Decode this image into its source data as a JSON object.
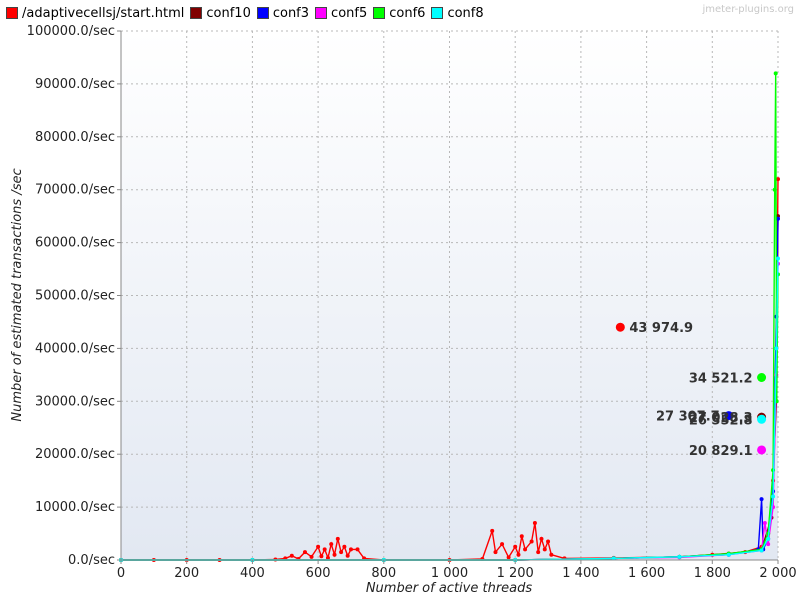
{
  "watermark": "jmeter-plugins.org",
  "chart_data": {
    "type": "line",
    "xlabel": "Number of active threads",
    "ylabel": "Number of estimated transactions /sec",
    "xlim": [
      0,
      2000
    ],
    "ylim": [
      0,
      100000
    ],
    "x_ticks": [
      0,
      200,
      400,
      600,
      800,
      1000,
      1200,
      1400,
      1600,
      1800,
      2000
    ],
    "x_tick_labels": [
      "0",
      "200",
      "400",
      "600",
      "800",
      "1 000",
      "1 200",
      "1 400",
      "1 600",
      "1 800",
      "2 000"
    ],
    "y_ticks": [
      0,
      10000,
      20000,
      30000,
      40000,
      50000,
      60000,
      70000,
      80000,
      90000,
      100000
    ],
    "y_tick_labels": [
      "0.0/sec",
      "10000.0/sec",
      "20000.0/sec",
      "30000.0/sec",
      "40000.0/sec",
      "50000.0/sec",
      "60000.0/sec",
      "70000.0/sec",
      "80000.0/sec",
      "90000.0/sec",
      "100000.0/sec"
    ],
    "grid": true,
    "legend_position": "top-left",
    "series": [
      {
        "name": "/adaptivecellsj/start.html",
        "color": "#ff0000",
        "points": [
          [
            0,
            0
          ],
          [
            100,
            0
          ],
          [
            200,
            0
          ],
          [
            300,
            0
          ],
          [
            400,
            0
          ],
          [
            470,
            100
          ],
          [
            500,
            300
          ],
          [
            520,
            800
          ],
          [
            540,
            200
          ],
          [
            560,
            1500
          ],
          [
            580,
            600
          ],
          [
            600,
            2500
          ],
          [
            610,
            700
          ],
          [
            620,
            2000
          ],
          [
            630,
            400
          ],
          [
            640,
            3000
          ],
          [
            650,
            1000
          ],
          [
            660,
            4000
          ],
          [
            670,
            1500
          ],
          [
            680,
            2500
          ],
          [
            690,
            800
          ],
          [
            700,
            2000
          ],
          [
            720,
            2000
          ],
          [
            740,
            300
          ],
          [
            800,
            0
          ],
          [
            1000,
            0
          ],
          [
            1100,
            200
          ],
          [
            1130,
            5500
          ],
          [
            1140,
            1500
          ],
          [
            1160,
            3000
          ],
          [
            1180,
            500
          ],
          [
            1200,
            2500
          ],
          [
            1210,
            1000
          ],
          [
            1220,
            4500
          ],
          [
            1230,
            2000
          ],
          [
            1250,
            3500
          ],
          [
            1260,
            7000
          ],
          [
            1270,
            1500
          ],
          [
            1280,
            4000
          ],
          [
            1290,
            2000
          ],
          [
            1300,
            3500
          ],
          [
            1310,
            1000
          ],
          [
            1350,
            300
          ],
          [
            1500,
            400
          ],
          [
            1700,
            600
          ],
          [
            1800,
            1000
          ],
          [
            1900,
            1500
          ],
          [
            1950,
            2500
          ],
          [
            1970,
            5000
          ],
          [
            1985,
            15000
          ],
          [
            1995,
            40000
          ],
          [
            2000,
            72000
          ]
        ]
      },
      {
        "name": "conf10",
        "color": "#800000",
        "points": [
          [
            0,
            0
          ],
          [
            400,
            0
          ],
          [
            800,
            0
          ],
          [
            1200,
            0
          ],
          [
            1500,
            300
          ],
          [
            1700,
            600
          ],
          [
            1850,
            1200
          ],
          [
            1950,
            2000
          ],
          [
            1980,
            8000
          ],
          [
            1995,
            30000
          ],
          [
            2000,
            65000
          ]
        ]
      },
      {
        "name": "conf3",
        "color": "#0000ff",
        "points": [
          [
            0,
            0
          ],
          [
            400,
            0
          ],
          [
            800,
            0
          ],
          [
            1200,
            0
          ],
          [
            1500,
            300
          ],
          [
            1700,
            600
          ],
          [
            1850,
            1000
          ],
          [
            1940,
            2000
          ],
          [
            1950,
            11500
          ],
          [
            1955,
            2000
          ],
          [
            1970,
            4000
          ],
          [
            1985,
            13000
          ],
          [
            1995,
            46000
          ],
          [
            2000,
            64500
          ]
        ]
      },
      {
        "name": "conf5",
        "color": "#ff00ff",
        "points": [
          [
            0,
            0
          ],
          [
            400,
            0
          ],
          [
            800,
            0
          ],
          [
            1200,
            0
          ],
          [
            1500,
            300
          ],
          [
            1700,
            500
          ],
          [
            1850,
            1000
          ],
          [
            1950,
            1800
          ],
          [
            1960,
            7000
          ],
          [
            1970,
            3000
          ],
          [
            1985,
            10000
          ],
          [
            1995,
            35000
          ],
          [
            2000,
            56000
          ]
        ]
      },
      {
        "name": "conf6",
        "color": "#00ff00",
        "points": [
          [
            0,
            0
          ],
          [
            400,
            0
          ],
          [
            800,
            0
          ],
          [
            1200,
            0
          ],
          [
            1500,
            300
          ],
          [
            1700,
            600
          ],
          [
            1850,
            1200
          ],
          [
            1950,
            2000
          ],
          [
            1970,
            5000
          ],
          [
            1985,
            17000
          ],
          [
            1990,
            70000
          ],
          [
            1993,
            92000
          ],
          [
            1996,
            30000
          ],
          [
            2000,
            54000
          ]
        ]
      },
      {
        "name": "conf8",
        "color": "#00ffff",
        "points": [
          [
            0,
            0
          ],
          [
            400,
            0
          ],
          [
            800,
            0
          ],
          [
            1200,
            0
          ],
          [
            1500,
            300
          ],
          [
            1700,
            600
          ],
          [
            1850,
            1000
          ],
          [
            1950,
            1800
          ],
          [
            1970,
            4000
          ],
          [
            1985,
            12000
          ],
          [
            1995,
            40000
          ],
          [
            2000,
            57000
          ]
        ]
      }
    ],
    "callouts": [
      {
        "label": "43 974.9",
        "x": 1520,
        "y": 44000,
        "color": "#ff0000",
        "side": "right"
      },
      {
        "label": "34 521.2",
        "x": 1950,
        "y": 34500,
        "color": "#00ff00",
        "side": "left"
      },
      {
        "label": "27 307.7",
        "x": 1850,
        "y": 27300,
        "color": "#0000ff",
        "side": "left"
      },
      {
        "label": "27 028.3",
        "x": 1950,
        "y": 27000,
        "color": "#800000",
        "side": "left"
      },
      {
        "label": "26 552.8",
        "x": 1950,
        "y": 26600,
        "color": "#00ffff",
        "side": "left"
      },
      {
        "label": "20 829.1",
        "x": 1950,
        "y": 20800,
        "color": "#ff00ff",
        "side": "left"
      }
    ]
  }
}
